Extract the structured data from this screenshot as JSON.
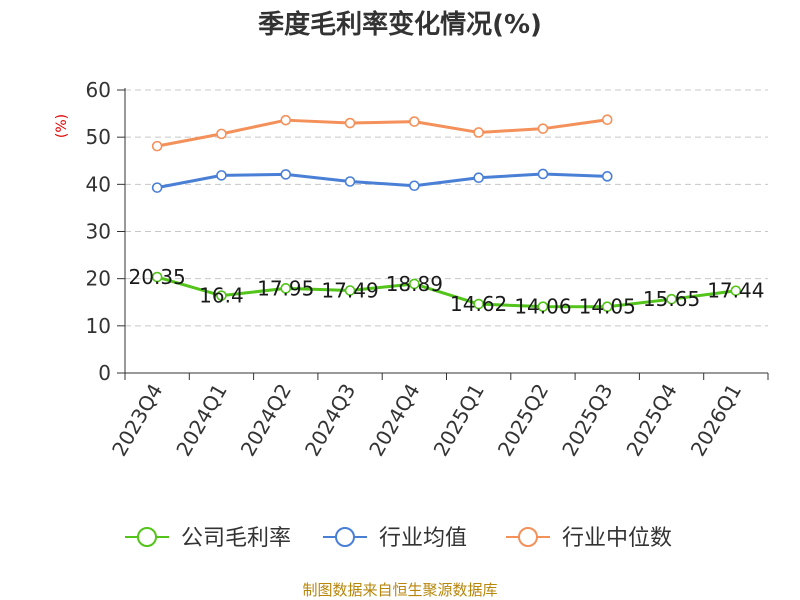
{
  "chart_data": {
    "type": "line",
    "title": "季度毛利率变化情况(%)",
    "ylabel": "(%)",
    "xlabel": "",
    "ylim": [
      0,
      60
    ],
    "yticks": [
      0,
      10,
      20,
      30,
      40,
      50,
      60
    ],
    "grid": true,
    "legend_position": "bottom",
    "categories": [
      "2023Q4",
      "2024Q1",
      "2024Q2",
      "2024Q3",
      "2024Q4",
      "2025Q1",
      "2025Q2",
      "2025Q3",
      "2025Q4",
      "2026Q1"
    ],
    "series": [
      {
        "name": "公司毛利率",
        "color": "#52c41a",
        "values": [
          20.35,
          16.4,
          17.95,
          17.49,
          18.89,
          14.62,
          14.06,
          14.05,
          15.65,
          17.44
        ],
        "labels": [
          "20.35",
          "16.4",
          "17.95",
          "17.49",
          "18.89",
          "14.62",
          "14.06",
          "14.05",
          "15.65",
          "17.44"
        ]
      },
      {
        "name": "行业均值",
        "color": "#4a7fd6",
        "values": [
          39.3,
          41.9,
          42.1,
          40.6,
          39.7,
          41.4,
          42.2,
          41.7,
          null,
          null
        ]
      },
      {
        "name": "行业中位数",
        "color": "#f4905a",
        "values": [
          48.1,
          50.7,
          53.6,
          53.0,
          53.3,
          51.0,
          51.8,
          53.7,
          null,
          null
        ]
      }
    ]
  },
  "source_text": "制图数据来自恒生聚源数据库"
}
